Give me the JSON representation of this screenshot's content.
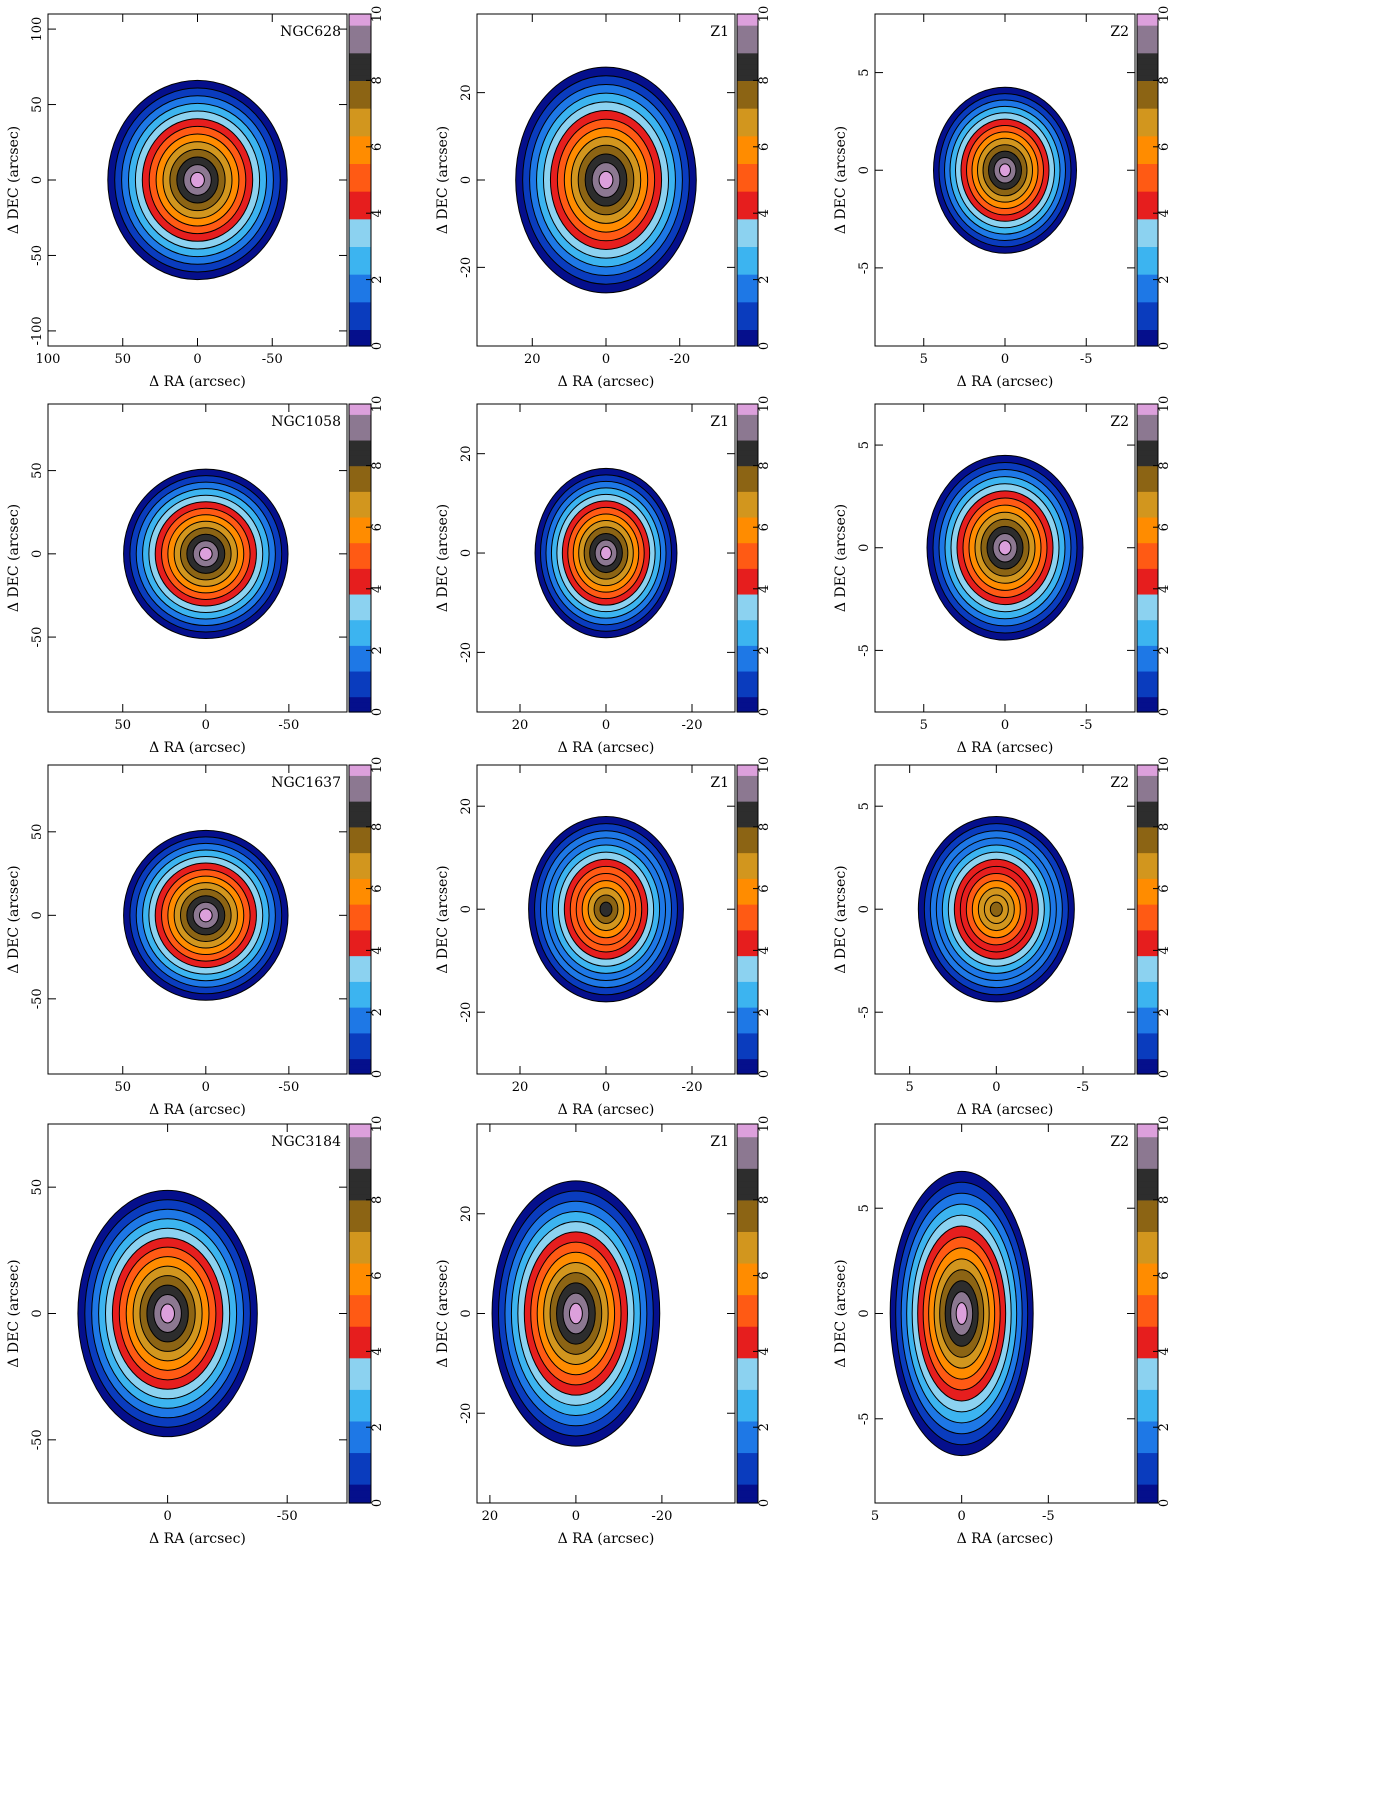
{
  "colors": {
    "colormap": [
      "#050f8c",
      "#0a3cbe",
      "#1e78e6",
      "#3cb4f0",
      "#8cd2f0",
      "#e61e1e",
      "#ff5a14",
      "#ff8c00",
      "#d2961e",
      "#8c6414",
      "#2d2d2d",
      "#8c7891",
      "#dca0dc"
    ]
  },
  "chart_data": [
    {
      "type": "heatmap",
      "label": "NGC628",
      "xlabel": "Δ RA (arcsec)",
      "ylabel": "Δ DEC (arcsec)",
      "xlim": [
        100,
        -100
      ],
      "ylim": [
        -110,
        110
      ],
      "xticks": [
        100,
        50,
        0,
        -50
      ],
      "yticks": [
        -100,
        -50,
        0,
        50,
        100
      ],
      "color_range": [
        0,
        10
      ],
      "cbar_ticks": [
        0,
        2,
        4,
        6,
        8,
        10
      ],
      "color_peak": 10,
      "size": [
        0.6,
        0.6
      ]
    },
    {
      "type": "heatmap",
      "label": "Z1",
      "xlabel": "Δ RA (arcsec)",
      "ylabel": "Δ DEC (arcsec)",
      "xlim": [
        35,
        -35
      ],
      "ylim": [
        -38,
        38
      ],
      "xticks": [
        20,
        0,
        -20
      ],
      "yticks": [
        -20,
        0,
        20
      ],
      "color_range": [
        0,
        10
      ],
      "cbar_ticks": [
        0,
        2,
        4,
        6,
        8,
        10
      ],
      "color_peak": 10,
      "size": [
        0.7,
        0.68
      ]
    },
    {
      "type": "heatmap",
      "label": "Z2",
      "xlabel": "Δ RA (arcsec)",
      "ylabel": "Δ DEC (arcsec)",
      "xlim": [
        8,
        -8
      ],
      "ylim": [
        -9,
        8
      ],
      "xticks": [
        5,
        0,
        -5
      ],
      "yticks": [
        -5,
        0,
        5
      ],
      "color_range": [
        0,
        10
      ],
      "cbar_ticks": [
        0,
        2,
        4,
        6,
        8,
        10
      ],
      "color_peak": 10,
      "size": [
        0.55,
        0.5
      ]
    },
    {
      "type": "heatmap",
      "label": "NGC1058",
      "xlabel": "Δ RA (arcsec)",
      "ylabel": "Δ DEC (arcsec)",
      "xlim": [
        95,
        -85
      ],
      "ylim": [
        -95,
        90
      ],
      "xticks": [
        50,
        0,
        -50
      ],
      "yticks": [
        -50,
        0,
        50
      ],
      "color_range": [
        0,
        10
      ],
      "cbar_ticks": [
        0,
        2,
        4,
        6,
        8,
        10
      ],
      "color_peak": 10,
      "size": [
        0.55,
        0.55
      ]
    },
    {
      "type": "heatmap",
      "label": "Z1",
      "xlabel": "Δ RA (arcsec)",
      "ylabel": "Δ DEC (arcsec)",
      "xlim": [
        30,
        -30
      ],
      "ylim": [
        -32,
        30
      ],
      "xticks": [
        20,
        0,
        -20
      ],
      "yticks": [
        -20,
        0,
        20
      ],
      "color_range": [
        0,
        10
      ],
      "cbar_ticks": [
        0,
        2,
        4,
        6,
        8,
        10
      ],
      "color_peak": 10,
      "size": [
        0.55,
        0.55
      ]
    },
    {
      "type": "heatmap",
      "label": "Z2",
      "xlabel": "Δ RA (arcsec)",
      "ylabel": "Δ DEC (arcsec)",
      "xlim": [
        8,
        -8
      ],
      "ylim": [
        -8,
        7
      ],
      "xticks": [
        5,
        0,
        -5
      ],
      "yticks": [
        -5,
        0,
        5
      ],
      "color_range": [
        0,
        10
      ],
      "cbar_ticks": [
        0,
        2,
        4,
        6,
        8,
        10
      ],
      "color_peak": 10,
      "size": [
        0.6,
        0.6
      ]
    },
    {
      "type": "heatmap",
      "label": "NGC1637",
      "xlabel": "Δ RA (arcsec)",
      "ylabel": "Δ DEC (arcsec)",
      "xlim": [
        95,
        -85
      ],
      "ylim": [
        -95,
        90
      ],
      "xticks": [
        50,
        0,
        -50
      ],
      "yticks": [
        -50,
        0,
        50
      ],
      "color_range": [
        0,
        10
      ],
      "cbar_ticks": [
        0,
        2,
        4,
        6,
        8,
        10
      ],
      "color_peak": 10,
      "size": [
        0.55,
        0.55
      ]
    },
    {
      "type": "heatmap",
      "label": "Z1",
      "xlabel": "Δ RA (arcsec)",
      "ylabel": "Δ DEC (arcsec)",
      "xlim": [
        30,
        -30
      ],
      "ylim": [
        -32,
        28
      ],
      "xticks": [
        20,
        0,
        -20
      ],
      "yticks": [
        -20,
        0,
        20
      ],
      "color_range": [
        0,
        10
      ],
      "cbar_ticks": [
        0,
        2,
        4,
        6,
        8,
        10
      ],
      "color_peak": 8,
      "size": [
        0.6,
        0.6
      ]
    },
    {
      "type": "heatmap",
      "label": "Z2",
      "xlabel": "Δ RA (arcsec)",
      "ylabel": "Δ DEC (arcsec)",
      "xlim": [
        7,
        -8
      ],
      "ylim": [
        -8,
        7
      ],
      "xticks": [
        5,
        0,
        -5
      ],
      "yticks": [
        -5,
        0,
        5
      ],
      "color_range": [
        0,
        10
      ],
      "cbar_ticks": [
        0,
        2,
        4,
        6,
        8,
        10
      ],
      "color_peak": 7.5,
      "size": [
        0.6,
        0.6
      ]
    },
    {
      "type": "heatmap",
      "label": "NGC3184",
      "xlabel": "Δ RA (arcsec)",
      "ylabel": "Δ DEC (arcsec)",
      "xlim": [
        50,
        -75
      ],
      "ylim": [
        -75,
        75
      ],
      "xticks": [
        0,
        -50
      ],
      "yticks": [
        -50,
        0,
        50
      ],
      "color_range": [
        0,
        10
      ],
      "cbar_ticks": [
        0,
        2,
        4,
        6,
        8,
        10
      ],
      "color_peak": 10,
      "size": [
        0.6,
        0.65
      ]
    },
    {
      "type": "heatmap",
      "label": "Z1",
      "xlabel": "Δ RA (arcsec)",
      "ylabel": "Δ DEC (arcsec)",
      "xlim": [
        23,
        -37
      ],
      "ylim": [
        -38,
        38
      ],
      "xticks": [
        20,
        0,
        -20
      ],
      "yticks": [
        -20,
        0,
        20
      ],
      "color_range": [
        0,
        10
      ],
      "cbar_ticks": [
        0,
        2,
        4,
        6,
        8,
        10
      ],
      "color_peak": 10,
      "size": [
        0.65,
        0.7
      ]
    },
    {
      "type": "heatmap",
      "label": "Z2",
      "xlabel": "Δ RA (arcsec)",
      "ylabel": "Δ DEC (arcsec)",
      "xlim": [
        5,
        -10
      ],
      "ylim": [
        -9,
        9
      ],
      "xticks": [
        5,
        0,
        -5
      ],
      "yticks": [
        -5,
        0,
        5
      ],
      "color_range": [
        0,
        10
      ],
      "cbar_ticks": [
        0,
        2,
        4,
        6,
        8,
        10
      ],
      "color_peak": 10,
      "size": [
        0.55,
        0.75
      ]
    }
  ]
}
